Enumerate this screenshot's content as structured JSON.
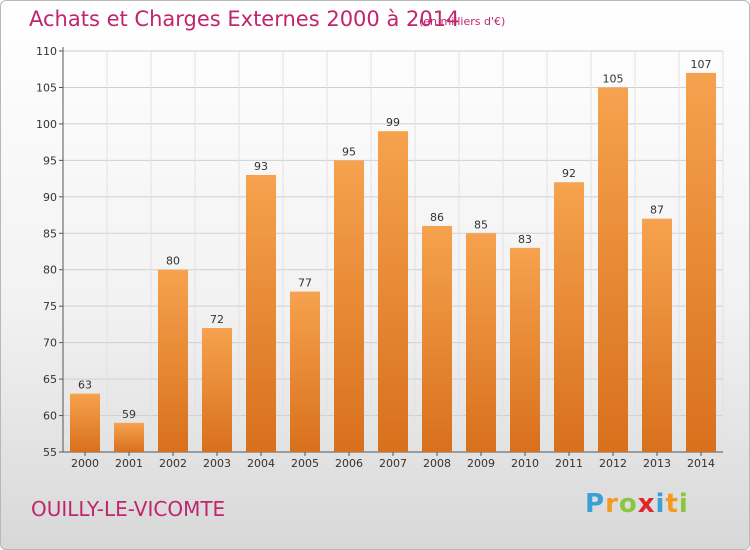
{
  "title": "Achats et Charges Externes 2000 à 2014",
  "unit_note": "(en milliers d'€)",
  "commune": "OUILLY-LE-VICOMTE",
  "logo": {
    "letters": [
      "P",
      "r",
      "o",
      "x",
      "i",
      "t",
      "i"
    ],
    "colors": [
      "#3aa0d8",
      "#f39a1f",
      "#8cc63f",
      "#e2242b",
      "#3aa0d8",
      "#f39a1f",
      "#8cc63f"
    ]
  },
  "colors": {
    "title": "#c0256e",
    "bar_top": "#f6a24e",
    "bar_bottom": "#d8701c"
  },
  "chart_data": {
    "type": "bar",
    "categories": [
      "2000",
      "2001",
      "2002",
      "2003",
      "2004",
      "2005",
      "2006",
      "2007",
      "2008",
      "2009",
      "2010",
      "2011",
      "2012",
      "2013",
      "2014"
    ],
    "values": [
      63,
      59,
      80,
      72,
      93,
      77,
      95,
      99,
      86,
      85,
      83,
      92,
      105,
      87,
      107
    ],
    "ylim": [
      55,
      110
    ],
    "yticks": [
      55,
      60,
      65,
      70,
      75,
      80,
      85,
      90,
      95,
      100,
      105,
      110
    ],
    "grid": true
  }
}
